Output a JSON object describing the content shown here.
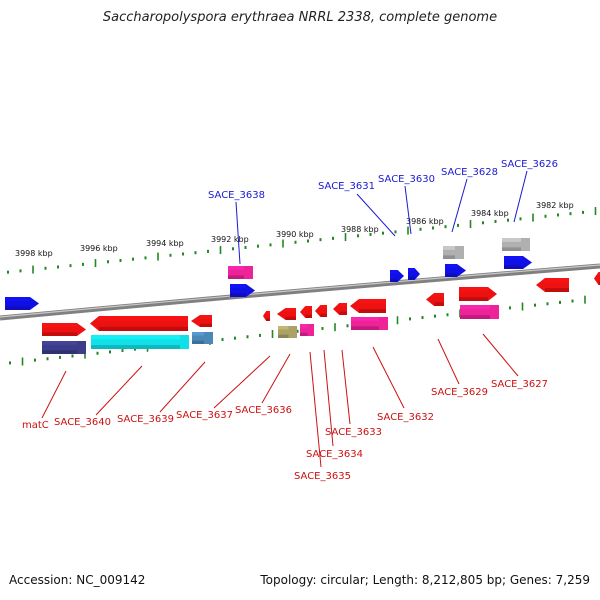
{
  "title": "Saccharopolyspora erythraea NRRL 2338, complete genome",
  "footer": {
    "accession": "Accession: NC_009142",
    "topology": "Topology: circular; Length: 8,212,805 bp; Genes: 7,259"
  },
  "ruler": {
    "labels": [
      "3998 kbp",
      "3996 kbp",
      "3994 kbp",
      "3992 kbp",
      "3990 kbp",
      "3988 kbp",
      "3986 kbp",
      "3984 kbp",
      "3982 kbp"
    ]
  },
  "colors": {
    "gene_red": "#ee1111",
    "cds_blue": "#1010e6",
    "magenta": "#ee2299",
    "cyan": "#11e0e8",
    "navy": "#3c3c88",
    "steel": "#4b88b8",
    "olive": "#aaa266",
    "gray": "#b0b0b0",
    "label_blue": "#1a1ad0",
    "label_red": "#cc1111",
    "tick_green": "#228822",
    "backbone": "#808080"
  },
  "top_labels": [
    "SACE_3638",
    "SACE_3631",
    "SACE_3630",
    "SACE_3628",
    "SACE_3626"
  ],
  "bottom_labels": [
    "matC",
    "SACE_3640",
    "SACE_3639",
    "SACE_3637",
    "SACE_3636",
    "SACE_3635",
    "SACE_3634",
    "SACE_3633",
    "SACE_3632",
    "SACE_3629",
    "SACE_3627"
  ]
}
